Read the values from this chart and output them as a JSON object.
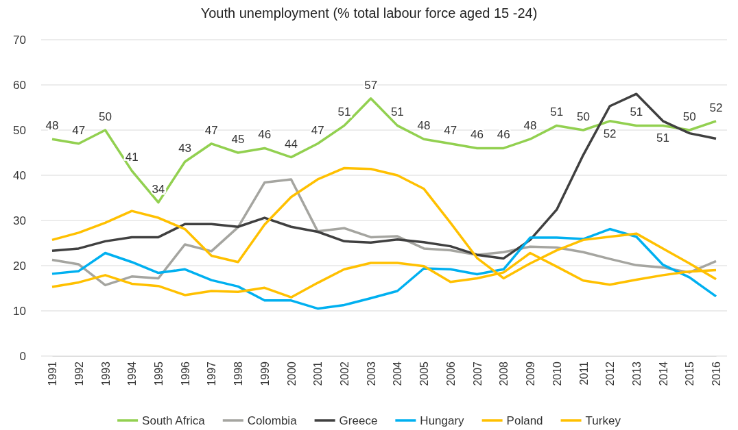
{
  "chart_data": {
    "type": "line",
    "title": "Youth unemployment (% total labour force aged 15 -24)",
    "categories": [
      "1991",
      "1992",
      "1993",
      "1994",
      "1995",
      "1996",
      "1997",
      "1998",
      "1999",
      "2000",
      "2001",
      "2002",
      "2003",
      "2004",
      "2005",
      "2006",
      "2007",
      "2008",
      "2009",
      "2010",
      "2011",
      "2012",
      "2013",
      "2014",
      "2015",
      "2016"
    ],
    "ylim": [
      0,
      70
    ],
    "yticks": [
      0,
      10,
      20,
      30,
      40,
      50,
      60,
      70
    ],
    "grid": "y",
    "legend": "bottom",
    "line_style": "solid",
    "marker": "none",
    "series": [
      {
        "name": "South Africa",
        "color": "#92d050",
        "data_labels": true,
        "values": [
          48,
          47,
          50,
          41,
          34,
          43,
          47,
          45,
          46,
          44,
          47,
          51,
          57,
          51,
          48,
          47,
          46,
          46,
          48,
          51,
          50,
          52,
          51,
          51,
          50,
          52
        ]
      },
      {
        "name": "Colombia",
        "color": "#a5a5a0",
        "values": [
          21.3,
          20.3,
          15.7,
          17.6,
          17.2,
          24.7,
          23.2,
          28.5,
          38.4,
          39.1,
          27.6,
          28.3,
          26.3,
          26.5,
          23.8,
          23.4,
          22.4,
          23.0,
          24.2,
          24.0,
          23.0,
          21.5,
          20.1,
          19.6,
          18.5,
          21.0
        ]
      },
      {
        "name": "Greece",
        "color": "#404040",
        "values": [
          23.3,
          23.8,
          25.4,
          26.3,
          26.3,
          29.2,
          29.2,
          28.6,
          30.6,
          28.6,
          27.5,
          25.4,
          25.1,
          25.8,
          25.2,
          24.3,
          22.4,
          21.6,
          25.7,
          32.4,
          44.5,
          55.3,
          58.0,
          52.0,
          49.3,
          48.1
        ]
      },
      {
        "name": "Hungary",
        "color": "#00b0f0",
        "values": [
          18.2,
          18.8,
          22.8,
          20.8,
          18.4,
          19.2,
          16.8,
          15.4,
          12.3,
          12.3,
          10.5,
          11.3,
          12.8,
          14.4,
          19.4,
          19.2,
          18.1,
          19.2,
          26.2,
          26.2,
          25.9,
          28.1,
          26.4,
          20.2,
          17.4,
          13.2
        ]
      },
      {
        "name": "Poland",
        "color": "#ffc000",
        "values": [
          25.7,
          27.3,
          29.5,
          32.1,
          30.6,
          28.1,
          22.2,
          20.8,
          29.1,
          35.2,
          39.1,
          41.6,
          41.4,
          40.0,
          37.0,
          29.5,
          21.7,
          17.2,
          20.5,
          23.4,
          25.7,
          26.4,
          27.1,
          23.8,
          20.5,
          17.0
        ]
      },
      {
        "name": "Turkey",
        "color": "#ffc000",
        "values": [
          15.3,
          16.3,
          17.9,
          16.0,
          15.5,
          13.5,
          14.4,
          14.2,
          15.1,
          13.0,
          16.2,
          19.2,
          20.6,
          20.6,
          19.9,
          16.4,
          17.2,
          18.5,
          22.8,
          19.8,
          16.7,
          15.8,
          16.9,
          17.9,
          18.7,
          19.0
        ]
      }
    ]
  }
}
